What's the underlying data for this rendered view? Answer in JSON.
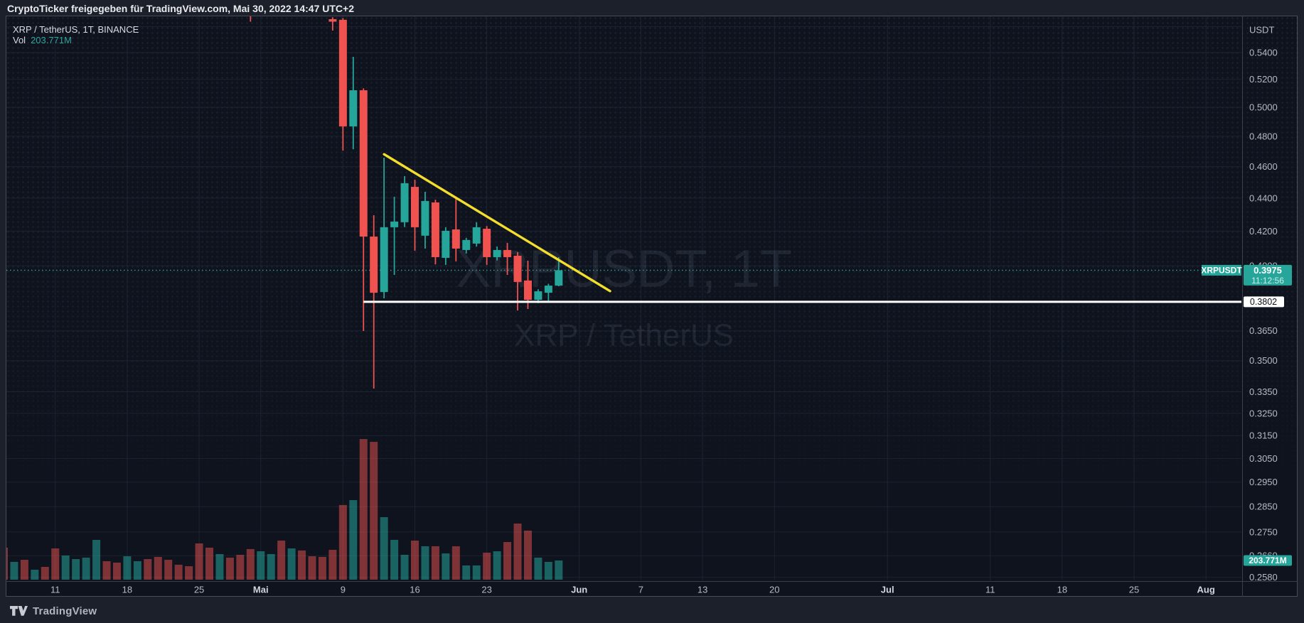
{
  "attribution": {
    "text": "CryptoTicker freigegeben für TradingView.com, Mai 30, 2022 14:47 UTC+2"
  },
  "legend": {
    "symbol_line": "XRP / TetherUS, 1T, BINANCE",
    "vol_label": "Vol",
    "vol_value": "203.771M"
  },
  "watermark": {
    "line1": "XRPUSDT, 1T",
    "line2": "XRP / TetherUS"
  },
  "footer": {
    "brand": "TradingView"
  },
  "badges": {
    "symbol_label": "XRPUSDT",
    "last_price": "0.3975",
    "countdown": "11:12:56",
    "support_price": "0.3802",
    "volume_value": "203.771M"
  },
  "colors": {
    "up": "#26a69a",
    "down": "#f0524f",
    "vol_up": "rgba(38,166,154,0.55)",
    "vol_down": "rgba(239,83,80,0.50)",
    "trendline_yellow": "#f3de2c",
    "support_white": "#ffffff",
    "axis_text": "#b6bac4",
    "axis_text_month": "#d2d5dc",
    "grid": "#1d2331",
    "watermark": "rgba(165,178,205,0.115)",
    "badge_teal": "#26a69a",
    "badge_white": "#ffffff"
  },
  "chart_data": {
    "type": "candlestick+volume",
    "symbol": "XRP / TetherUS",
    "ticker": "XRPUSDT",
    "exchange": "BINANCE",
    "interval": "1T",
    "quote_currency": "USDT",
    "price_scale": "log",
    "last_price": 0.3975,
    "countdown": "11:12:56",
    "support_level": 0.3802,
    "last_volume_label": "203.771M",
    "price_axis_ticks": [
      {
        "label": "0.5400",
        "p": 0.54
      },
      {
        "label": "0.5200",
        "p": 0.52
      },
      {
        "label": "0.5000",
        "p": 0.5
      },
      {
        "label": "0.4800",
        "p": 0.48
      },
      {
        "label": "0.4600",
        "p": 0.46
      },
      {
        "label": "0.4400",
        "p": 0.44
      },
      {
        "label": "0.4200",
        "p": 0.42
      },
      {
        "label": "0.4000",
        "p": 0.4
      },
      {
        "label": "0.3650",
        "p": 0.365
      },
      {
        "label": "0.3500",
        "p": 0.35
      },
      {
        "label": "0.3350",
        "p": 0.335
      },
      {
        "label": "0.3250",
        "p": 0.325
      },
      {
        "label": "0.3150",
        "p": 0.315
      },
      {
        "label": "0.3050",
        "p": 0.305
      },
      {
        "label": "0.2950",
        "p": 0.295
      },
      {
        "label": "0.2850",
        "p": 0.285
      },
      {
        "label": "0.2750",
        "p": 0.275
      },
      {
        "label": "0.2660",
        "p": 0.266
      },
      {
        "label": "0.2580",
        "p": 0.258
      }
    ],
    "unlabeled_gridline_price": 0.56,
    "time_axis_ticks": [
      {
        "label": "11",
        "i": 5,
        "month": false
      },
      {
        "label": "18",
        "i": 12,
        "month": false
      },
      {
        "label": "25",
        "i": 19,
        "month": false
      },
      {
        "label": "Mai",
        "i": 25,
        "month": true
      },
      {
        "label": "9",
        "i": 33,
        "month": false
      },
      {
        "label": "16",
        "i": 40,
        "month": false
      },
      {
        "label": "23",
        "i": 47,
        "month": false
      },
      {
        "label": "Jun",
        "i": 56,
        "month": true
      },
      {
        "label": "7",
        "i": 62,
        "month": false
      },
      {
        "label": "13",
        "i": 68,
        "month": false
      },
      {
        "label": "20",
        "i": 75,
        "month": false
      },
      {
        "label": "Jul",
        "i": 86,
        "month": true
      },
      {
        "label": "11",
        "i": 96,
        "month": false
      },
      {
        "label": "18",
        "i": 103,
        "month": false
      },
      {
        "label": "25",
        "i": 110,
        "month": false
      },
      {
        "label": "Aug",
        "i": 117,
        "month": true
      }
    ],
    "candles": [
      {
        "i": 32,
        "d": "Mai 8",
        "o": 0.566,
        "h": 0.5675,
        "l": 0.557,
        "c": 0.564
      },
      {
        "i": 33,
        "d": "Mai 9",
        "o": 0.5655,
        "h": 0.5668,
        "l": 0.4704,
        "c": 0.4867
      },
      {
        "i": 34,
        "d": "Mai 10",
        "o": 0.4867,
        "h": 0.5368,
        "l": 0.4713,
        "c": 0.5121
      },
      {
        "i": 35,
        "d": "Mai 11",
        "o": 0.5121,
        "h": 0.5135,
        "l": 0.3649,
        "c": 0.4168
      },
      {
        "i": 36,
        "d": "Mai 12",
        "o": 0.4168,
        "h": 0.4295,
        "l": 0.3365,
        "c": 0.3851
      },
      {
        "i": 37,
        "d": "Mai 13",
        "o": 0.3855,
        "h": 0.4657,
        "l": 0.3821,
        "c": 0.4223
      },
      {
        "i": 38,
        "d": "Mai 14",
        "o": 0.4223,
        "h": 0.4408,
        "l": 0.3949,
        "c": 0.4257
      },
      {
        "i": 39,
        "d": "Mai 15",
        "o": 0.4253,
        "h": 0.4538,
        "l": 0.4224,
        "c": 0.4493
      },
      {
        "i": 40,
        "d": "Mai 16",
        "o": 0.447,
        "h": 0.4515,
        "l": 0.4086,
        "c": 0.4223
      },
      {
        "i": 41,
        "d": "Mai 17",
        "o": 0.4173,
        "h": 0.4439,
        "l": 0.4098,
        "c": 0.4382
      },
      {
        "i": 42,
        "d": "Mai 18",
        "o": 0.4373,
        "h": 0.439,
        "l": 0.4008,
        "c": 0.4049
      },
      {
        "i": 43,
        "d": "Mai 19",
        "o": 0.4045,
        "h": 0.4223,
        "l": 0.4005,
        "c": 0.4202
      },
      {
        "i": 44,
        "d": "Mai 20",
        "o": 0.421,
        "h": 0.4406,
        "l": 0.4025,
        "c": 0.4098
      },
      {
        "i": 45,
        "d": "Mai 21",
        "o": 0.409,
        "h": 0.416,
        "l": 0.407,
        "c": 0.4148
      },
      {
        "i": 46,
        "d": "Mai 22",
        "o": 0.4127,
        "h": 0.4253,
        "l": 0.411,
        "c": 0.4223
      },
      {
        "i": 47,
        "d": "Mai 23",
        "o": 0.4214,
        "h": 0.423,
        "l": 0.4005,
        "c": 0.4049
      },
      {
        "i": 48,
        "d": "Mai 24",
        "o": 0.4049,
        "h": 0.411,
        "l": 0.403,
        "c": 0.409
      },
      {
        "i": 49,
        "d": "Mai 25",
        "o": 0.409,
        "h": 0.4131,
        "l": 0.3949,
        "c": 0.4049
      },
      {
        "i": 50,
        "d": "Mai 26",
        "o": 0.4057,
        "h": 0.4078,
        "l": 0.3756,
        "c": 0.391
      },
      {
        "i": 51,
        "d": "Mai 27",
        "o": 0.3918,
        "h": 0.4029,
        "l": 0.3764,
        "c": 0.3813
      },
      {
        "i": 52,
        "d": "Mai 28",
        "o": 0.3813,
        "h": 0.387,
        "l": 0.3795,
        "c": 0.3859
      },
      {
        "i": 53,
        "d": "Mai 29",
        "o": 0.3851,
        "h": 0.39,
        "l": 0.3802,
        "c": 0.389
      },
      {
        "i": 54,
        "d": "Mai 30",
        "o": 0.389,
        "h": 0.4049,
        "l": 0.3886,
        "c": 0.3975
      }
    ],
    "offscreen_candle_low": {
      "i": 24,
      "low": 0.564
    },
    "volume_bars_millions": [
      {
        "i": 0,
        "d": "Apr 6",
        "v": 340,
        "dir": "down"
      },
      {
        "i": 1,
        "d": "Apr 7",
        "v": 189,
        "dir": "up"
      },
      {
        "i": 2,
        "d": "Apr 8",
        "v": 211,
        "dir": "down"
      },
      {
        "i": 3,
        "d": "Apr 9",
        "v": 106,
        "dir": "up"
      },
      {
        "i": 4,
        "d": "Apr 10",
        "v": 136,
        "dir": "down"
      },
      {
        "i": 5,
        "d": "Apr 11",
        "v": 332,
        "dir": "down"
      },
      {
        "i": 6,
        "d": "Apr 12",
        "v": 257,
        "dir": "up"
      },
      {
        "i": 7,
        "d": "Apr 13",
        "v": 219,
        "dir": "up"
      },
      {
        "i": 8,
        "d": "Apr 14",
        "v": 234,
        "dir": "up"
      },
      {
        "i": 9,
        "d": "Apr 15",
        "v": 423,
        "dir": "up"
      },
      {
        "i": 10,
        "d": "Apr 16",
        "v": 196,
        "dir": "down"
      },
      {
        "i": 11,
        "d": "Apr 17",
        "v": 181,
        "dir": "down"
      },
      {
        "i": 12,
        "d": "Apr 18",
        "v": 249,
        "dir": "up"
      },
      {
        "i": 13,
        "d": "Apr 19",
        "v": 196,
        "dir": "up"
      },
      {
        "i": 14,
        "d": "Apr 20",
        "v": 219,
        "dir": "down"
      },
      {
        "i": 15,
        "d": "Apr 21",
        "v": 242,
        "dir": "down"
      },
      {
        "i": 16,
        "d": "Apr 22",
        "v": 211,
        "dir": "down"
      },
      {
        "i": 17,
        "d": "Apr 23",
        "v": 159,
        "dir": "down"
      },
      {
        "i": 18,
        "d": "Apr 24",
        "v": 143,
        "dir": "down"
      },
      {
        "i": 19,
        "d": "Apr 25",
        "v": 385,
        "dir": "down"
      },
      {
        "i": 20,
        "d": "Apr 26",
        "v": 340,
        "dir": "down"
      },
      {
        "i": 21,
        "d": "Apr 27",
        "v": 272,
        "dir": "up"
      },
      {
        "i": 22,
        "d": "Apr 28",
        "v": 234,
        "dir": "down"
      },
      {
        "i": 23,
        "d": "Apr 29",
        "v": 264,
        "dir": "down"
      },
      {
        "i": 24,
        "d": "Apr 30",
        "v": 325,
        "dir": "down"
      },
      {
        "i": 25,
        "d": "Mai 1",
        "v": 302,
        "dir": "up"
      },
      {
        "i": 26,
        "d": "Mai 2",
        "v": 272,
        "dir": "up"
      },
      {
        "i": 27,
        "d": "Mai 3",
        "v": 415,
        "dir": "down"
      },
      {
        "i": 28,
        "d": "Mai 4",
        "v": 332,
        "dir": "up"
      },
      {
        "i": 29,
        "d": "Mai 5",
        "v": 310,
        "dir": "down"
      },
      {
        "i": 30,
        "d": "Mai 6",
        "v": 249,
        "dir": "down"
      },
      {
        "i": 31,
        "d": "Mai 7",
        "v": 242,
        "dir": "down"
      },
      {
        "i": 32,
        "d": "Mai 8",
        "v": 317,
        "dir": "down"
      },
      {
        "i": 33,
        "d": "Mai 9",
        "v": 793,
        "dir": "down"
      },
      {
        "i": 34,
        "d": "Mai 10",
        "v": 845,
        "dir": "up"
      },
      {
        "i": 35,
        "d": "Mai 11",
        "v": 1494,
        "dir": "down"
      },
      {
        "i": 36,
        "d": "Mai 12",
        "v": 1464,
        "dir": "down"
      },
      {
        "i": 37,
        "d": "Mai 13",
        "v": 664,
        "dir": "up"
      },
      {
        "i": 38,
        "d": "Mai 14",
        "v": 423,
        "dir": "up"
      },
      {
        "i": 39,
        "d": "Mai 15",
        "v": 264,
        "dir": "up"
      },
      {
        "i": 40,
        "d": "Mai 16",
        "v": 415,
        "dir": "down"
      },
      {
        "i": 41,
        "d": "Mai 17",
        "v": 355,
        "dir": "up"
      },
      {
        "i": 42,
        "d": "Mai 18",
        "v": 355,
        "dir": "down"
      },
      {
        "i": 43,
        "d": "Mai 19",
        "v": 279,
        "dir": "up"
      },
      {
        "i": 44,
        "d": "Mai 20",
        "v": 355,
        "dir": "down"
      },
      {
        "i": 45,
        "d": "Mai 21",
        "v": 151,
        "dir": "up"
      },
      {
        "i": 46,
        "d": "Mai 22",
        "v": 151,
        "dir": "up"
      },
      {
        "i": 47,
        "d": "Mai 23",
        "v": 287,
        "dir": "down"
      },
      {
        "i": 48,
        "d": "Mai 24",
        "v": 302,
        "dir": "up"
      },
      {
        "i": 49,
        "d": "Mai 25",
        "v": 400,
        "dir": "down"
      },
      {
        "i": 50,
        "d": "Mai 26",
        "v": 596,
        "dir": "down"
      },
      {
        "i": 51,
        "d": "Mai 27",
        "v": 521,
        "dir": "down"
      },
      {
        "i": 52,
        "d": "Mai 28",
        "v": 234,
        "dir": "up"
      },
      {
        "i": 53,
        "d": "Mai 29",
        "v": 189,
        "dir": "up"
      },
      {
        "i": 54,
        "d": "Mai 30",
        "v": 203.771,
        "dir": "up"
      }
    ],
    "drawings": {
      "trendline": {
        "from": {
          "i": 37,
          "price": 0.468
        },
        "to": {
          "i": 59,
          "price": 0.386
        }
      },
      "support_line": {
        "price": 0.3802,
        "from_i": 35
      }
    }
  }
}
